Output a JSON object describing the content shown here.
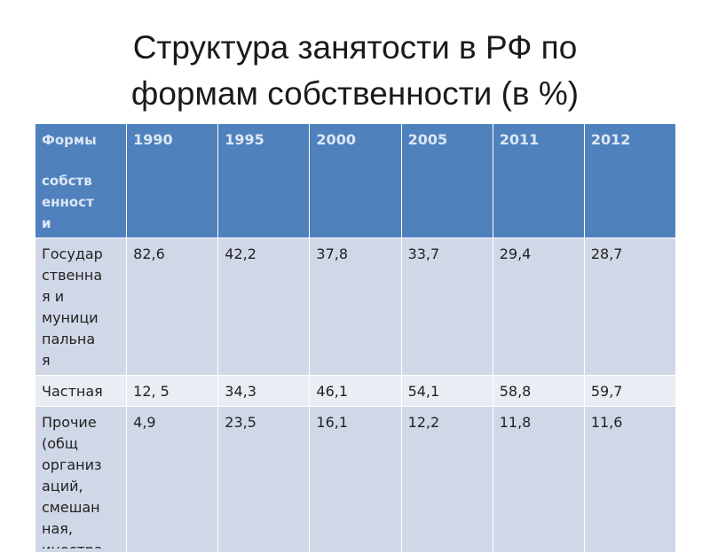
{
  "title": {
    "line1": "Структура занятости в РФ по",
    "line2": "формам собственности (в %)"
  },
  "table": {
    "header": {
      "first_line1": "Формы",
      "first_line2": "собств",
      "first_line3": "енност",
      "first_line4": "и",
      "years": [
        "1990",
        "1995",
        "2000",
        "2005",
        "2011",
        "2012"
      ]
    },
    "rows": [
      {
        "label_lines": [
          "Государ",
          "ственна",
          "я и",
          "муници",
          "пальна",
          "я"
        ],
        "values": [
          "82,6",
          "42,2",
          "37,8",
          "33,7",
          "29,4",
          "28,7"
        ]
      },
      {
        "label_lines": [
          "Частная"
        ],
        "values": [
          "12, 5",
          "34,3",
          "46,1",
          "54,1",
          "58,8",
          "59,7"
        ]
      },
      {
        "label_lines": [
          "Прочие",
          "(общ",
          "организ",
          "аций,",
          "смешан",
          "ная,",
          "иностра"
        ],
        "values": [
          "4,9",
          "23,5",
          "16,1",
          "12,2",
          "11,8",
          "11,6"
        ]
      }
    ]
  }
}
